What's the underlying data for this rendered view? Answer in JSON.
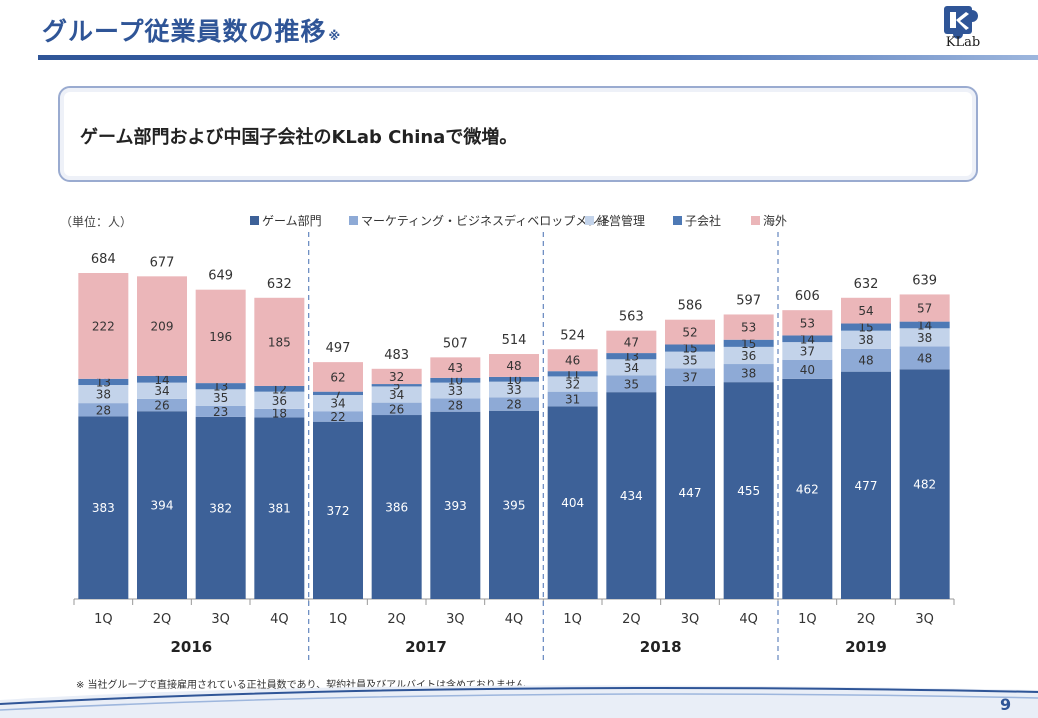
{
  "header": {
    "title": "グループ従業員数の推移",
    "title_note": "※",
    "logo_text": "KLab"
  },
  "summary": "ゲーム部門および中国子会社のKLab Chinaで微増。",
  "footnote": "※ 当社グループで直接雇用されている正社員数であり、契約社員及びアルバイトは含めておりません。",
  "page_number": "9",
  "colors": {
    "accent": "#2f5597",
    "game": "#3d6198",
    "marketing": "#8eaad6",
    "admin": "#c3d3ea",
    "subsidiary": "#4e79b5",
    "overseas": "#ebb6b9"
  },
  "chart_data": {
    "type": "bar",
    "stacked": true,
    "unit_label": "（単位：人）",
    "categories": [
      "1Q",
      "2Q",
      "3Q",
      "4Q",
      "1Q",
      "2Q",
      "3Q",
      "4Q",
      "1Q",
      "2Q",
      "3Q",
      "4Q",
      "1Q",
      "2Q",
      "3Q"
    ],
    "year_groups": [
      {
        "label": "2016",
        "count": 4
      },
      {
        "label": "2017",
        "count": 4
      },
      {
        "label": "2018",
        "count": 4
      },
      {
        "label": "2019",
        "count": 3
      }
    ],
    "series": [
      {
        "name": "ゲーム部門",
        "color": "#3d6198",
        "label_color": "#ffffff",
        "values": [
          383,
          394,
          382,
          381,
          372,
          386,
          393,
          395,
          404,
          434,
          447,
          455,
          462,
          477,
          482
        ]
      },
      {
        "name": "マーケティング・ビジネスディベロップメント",
        "color": "#8eaad6",
        "label_color": "#333333",
        "values": [
          28,
          26,
          23,
          18,
          22,
          26,
          28,
          28,
          31,
          35,
          37,
          38,
          40,
          48,
          48
        ]
      },
      {
        "name": "経営管理",
        "color": "#c3d3ea",
        "label_color": "#333333",
        "values": [
          38,
          34,
          35,
          36,
          34,
          34,
          33,
          33,
          32,
          34,
          35,
          36,
          37,
          38,
          38
        ]
      },
      {
        "name": "子会社",
        "color": "#4e79b5",
        "label_color": "#333333",
        "values": [
          13,
          14,
          13,
          12,
          7,
          5,
          10,
          10,
          11,
          13,
          15,
          15,
          14,
          15,
          14
        ]
      },
      {
        "name": "海外",
        "color": "#ebb6b9",
        "label_color": "#333333",
        "values": [
          222,
          209,
          196,
          185,
          62,
          32,
          43,
          48,
          46,
          47,
          52,
          53,
          53,
          54,
          57
        ]
      }
    ],
    "totals": [
      684,
      677,
      649,
      632,
      497,
      483,
      507,
      514,
      524,
      563,
      586,
      597,
      606,
      632,
      639
    ],
    "ylim": [
      0,
      684
    ],
    "grid": false,
    "legend_position": "top"
  }
}
